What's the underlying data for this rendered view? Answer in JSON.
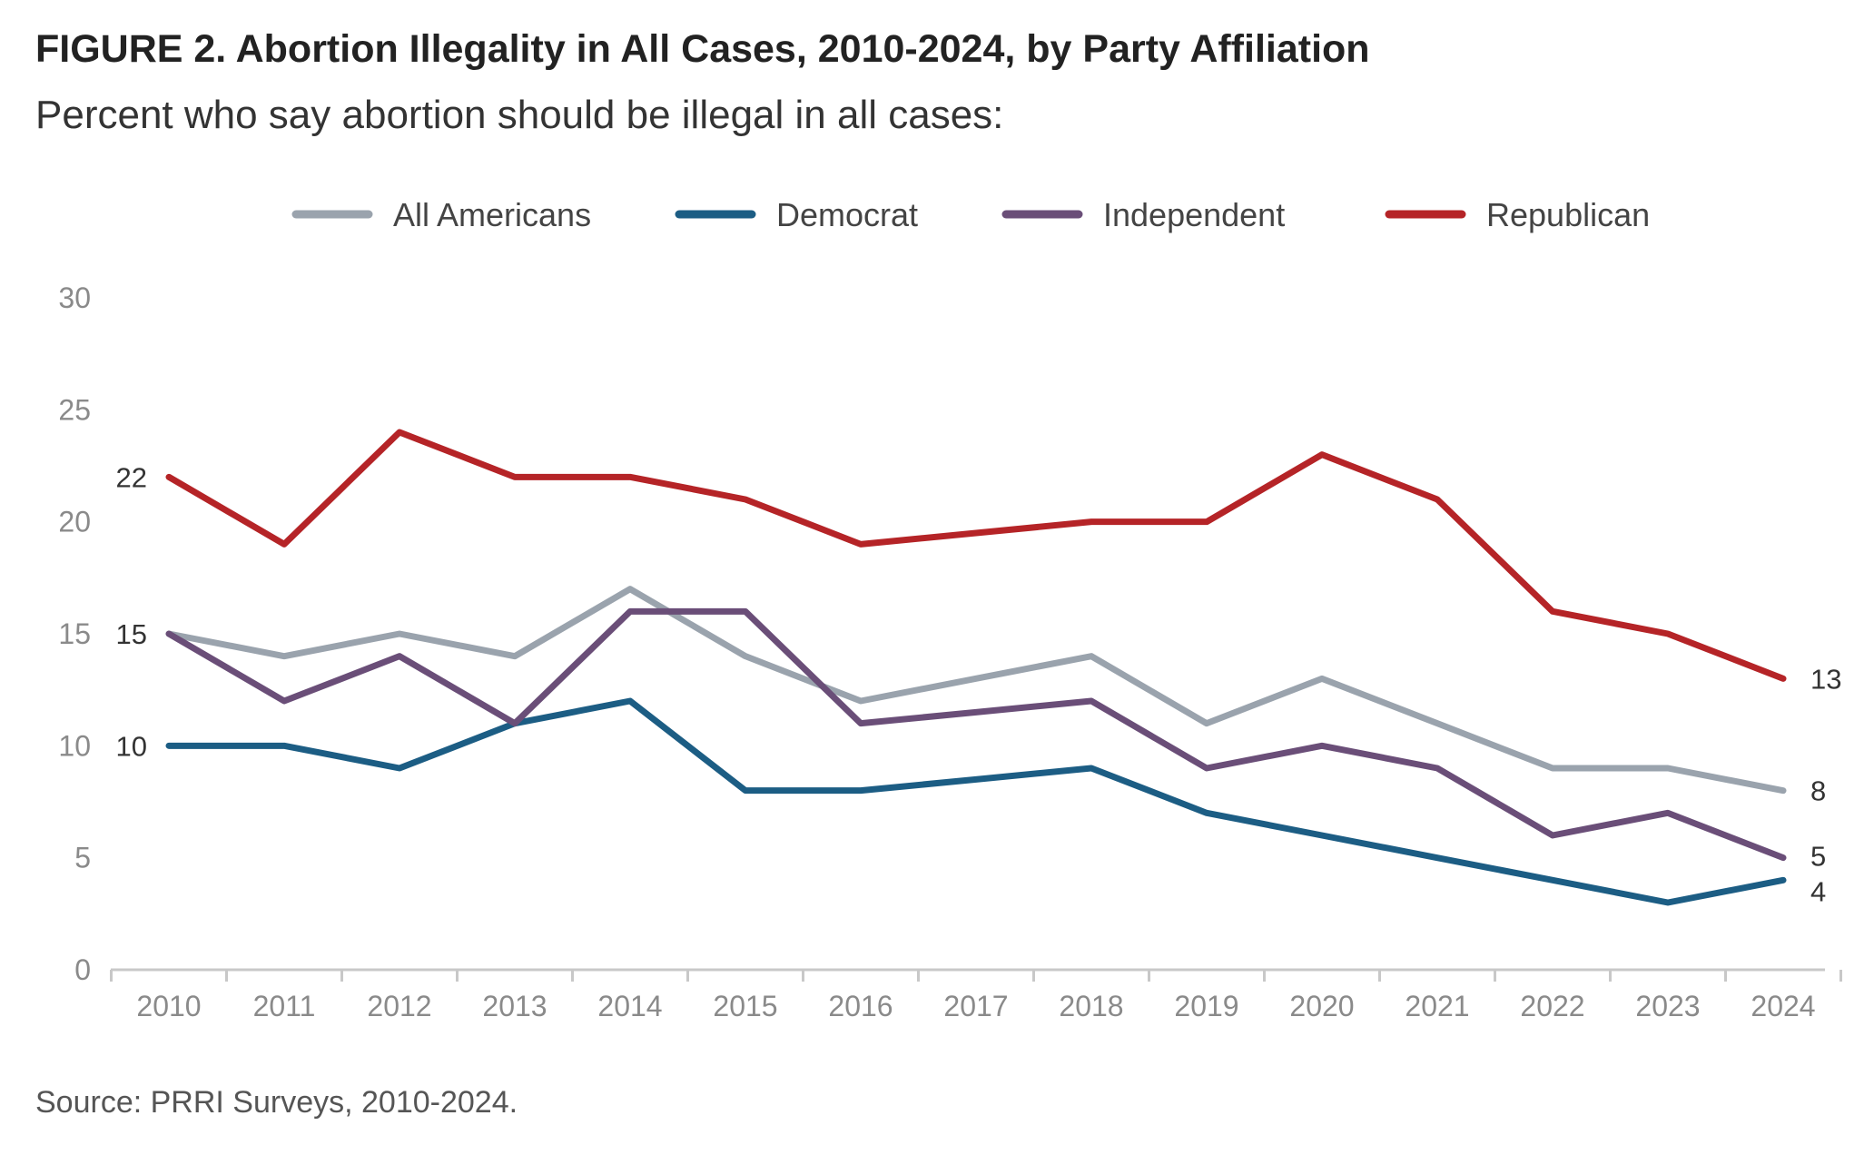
{
  "title": "FIGURE 2. Abortion Illegality in All Cases, 2010-2024, by Party Affiliation",
  "subtitle": "Percent who say abortion should be illegal in all cases:",
  "source": "Source: PRRI Surveys, 2010-2024.",
  "chart_data": {
    "type": "line",
    "title": "FIGURE 2. Abortion Illegality in All Cases, 2010-2024, by Party Affiliation",
    "subtitle": "Percent who say abortion should be illegal in all cases:",
    "categories": [
      "2010",
      "2011",
      "2012",
      "2013",
      "2014",
      "2015",
      "2016",
      "2017",
      "2018",
      "2019",
      "2020",
      "2021",
      "2022",
      "2023",
      "2024"
    ],
    "ylim": [
      0,
      30
    ],
    "yticks": [
      0,
      5,
      10,
      15,
      20,
      25,
      30
    ],
    "grid": false,
    "legend_position": "top",
    "series": [
      {
        "name": "All Americans",
        "color": "#9aa3ad",
        "values": [
          15,
          14,
          15,
          14,
          17,
          14,
          12,
          13,
          14,
          11,
          13,
          11,
          9,
          9,
          8
        ],
        "start_label": "15",
        "end_label": "8"
      },
      {
        "name": "Democrat",
        "color": "#1c5d84",
        "values": [
          10,
          10,
          9,
          11,
          12,
          8,
          8,
          8.5,
          9,
          7,
          6,
          5,
          4,
          3,
          4
        ],
        "start_label": "10",
        "end_label": "4"
      },
      {
        "name": "Independent",
        "color": "#6a4e78",
        "values": [
          15,
          12,
          14,
          11,
          16,
          16,
          11,
          11.5,
          12,
          9,
          10,
          9,
          6,
          7,
          5
        ],
        "start_label": "",
        "end_label": "5"
      },
      {
        "name": "Republican",
        "color": "#b52427",
        "values": [
          22,
          19,
          24,
          22,
          22,
          21,
          19,
          19.5,
          20,
          20,
          23,
          21,
          16,
          15,
          13
        ],
        "start_label": "22",
        "end_label": "13"
      }
    ]
  }
}
